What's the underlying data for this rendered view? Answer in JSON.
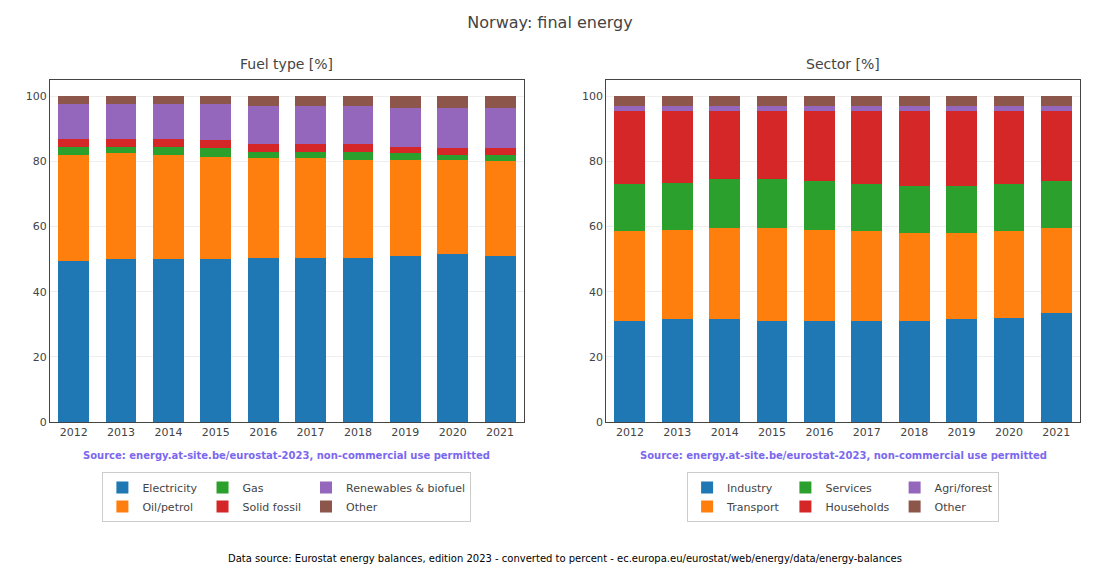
{
  "title": "Norway: final energy",
  "annotations": [
    "Data source: Eurostat energy balances, edition 2023 - converted to percent - ec.europa.eu/eurostat/web/energy/data/energy-balances"
  ],
  "chart_data": [
    {
      "type": "bar",
      "title": "Fuel type [%]",
      "categories": [
        "2012",
        "2013",
        "2014",
        "2015",
        "2016",
        "2017",
        "2018",
        "2019",
        "2020",
        "2021"
      ],
      "stacked": true,
      "grid": true,
      "legend": "bottom",
      "ylim": [
        0,
        105
      ],
      "yticks": [
        0,
        20,
        40,
        60,
        80,
        100
      ],
      "annotations": [
        {
          "text": "Source: energy.at-site.be/eurostat-2023, non-commercial use permitted",
          "color": "#7B68EE"
        }
      ],
      "series": [
        {
          "name": "Electricity",
          "color": "#1f77b4",
          "values": [
            49.5,
            50.0,
            50.0,
            50.0,
            50.5,
            50.5,
            50.5,
            51.0,
            51.5,
            51.0
          ]
        },
        {
          "name": "Oil/petrol",
          "color": "#ff7f0e",
          "values": [
            32.5,
            32.5,
            32.0,
            31.5,
            30.5,
            30.5,
            30.0,
            29.5,
            29.0,
            29.0
          ]
        },
        {
          "name": "Gas",
          "color": "#2ca02c",
          "values": [
            2.5,
            2.0,
            2.5,
            2.5,
            2.0,
            2.0,
            2.5,
            2.0,
            1.5,
            2.0
          ]
        },
        {
          "name": "Solid fossil",
          "color": "#d62728",
          "values": [
            2.5,
            2.5,
            2.5,
            2.5,
            2.5,
            2.5,
            2.5,
            2.0,
            2.0,
            2.0
          ]
        },
        {
          "name": "Renewables & biofuel",
          "color": "#9467bd",
          "values": [
            10.5,
            10.5,
            10.5,
            11.0,
            11.5,
            11.5,
            11.5,
            12.0,
            12.5,
            12.5
          ]
        },
        {
          "name": "Other",
          "color": "#8c564b",
          "values": [
            2.5,
            2.5,
            2.5,
            2.5,
            3.0,
            3.0,
            3.0,
            3.5,
            3.5,
            3.5
          ]
        }
      ]
    },
    {
      "type": "bar",
      "title": "Sector [%]",
      "categories": [
        "2012",
        "2013",
        "2014",
        "2015",
        "2016",
        "2017",
        "2018",
        "2019",
        "2020",
        "2021"
      ],
      "stacked": true,
      "grid": true,
      "legend": "bottom",
      "ylim": [
        0,
        105
      ],
      "yticks": [
        0,
        20,
        40,
        60,
        80,
        100
      ],
      "annotations": [
        {
          "text": "Source: energy.at-site.be/eurostat-2023, non-commercial use permitted",
          "color": "#7B68EE"
        }
      ],
      "series": [
        {
          "name": "Industry",
          "color": "#1f77b4",
          "values": [
            31.0,
            31.5,
            31.5,
            31.0,
            31.0,
            31.0,
            31.0,
            31.5,
            32.0,
            33.5
          ]
        },
        {
          "name": "Transport",
          "color": "#ff7f0e",
          "values": [
            27.5,
            27.5,
            28.0,
            28.5,
            28.0,
            27.5,
            27.0,
            26.5,
            26.5,
            26.0
          ]
        },
        {
          "name": "Services",
          "color": "#2ca02c",
          "values": [
            14.5,
            14.5,
            15.0,
            15.0,
            15.0,
            14.5,
            14.5,
            14.5,
            14.5,
            14.5
          ]
        },
        {
          "name": "Households",
          "color": "#d62728",
          "values": [
            22.5,
            22.0,
            21.0,
            21.0,
            21.5,
            22.5,
            23.0,
            23.0,
            22.5,
            21.5
          ]
        },
        {
          "name": "Agri/forest",
          "color": "#9467bd",
          "values": [
            1.5,
            1.5,
            1.5,
            1.5,
            1.5,
            1.5,
            1.5,
            1.5,
            1.5,
            1.5
          ]
        },
        {
          "name": "Other",
          "color": "#8c564b",
          "values": [
            3.0,
            3.0,
            3.0,
            3.0,
            3.0,
            3.0,
            3.0,
            3.0,
            3.0,
            3.0
          ]
        }
      ]
    }
  ]
}
